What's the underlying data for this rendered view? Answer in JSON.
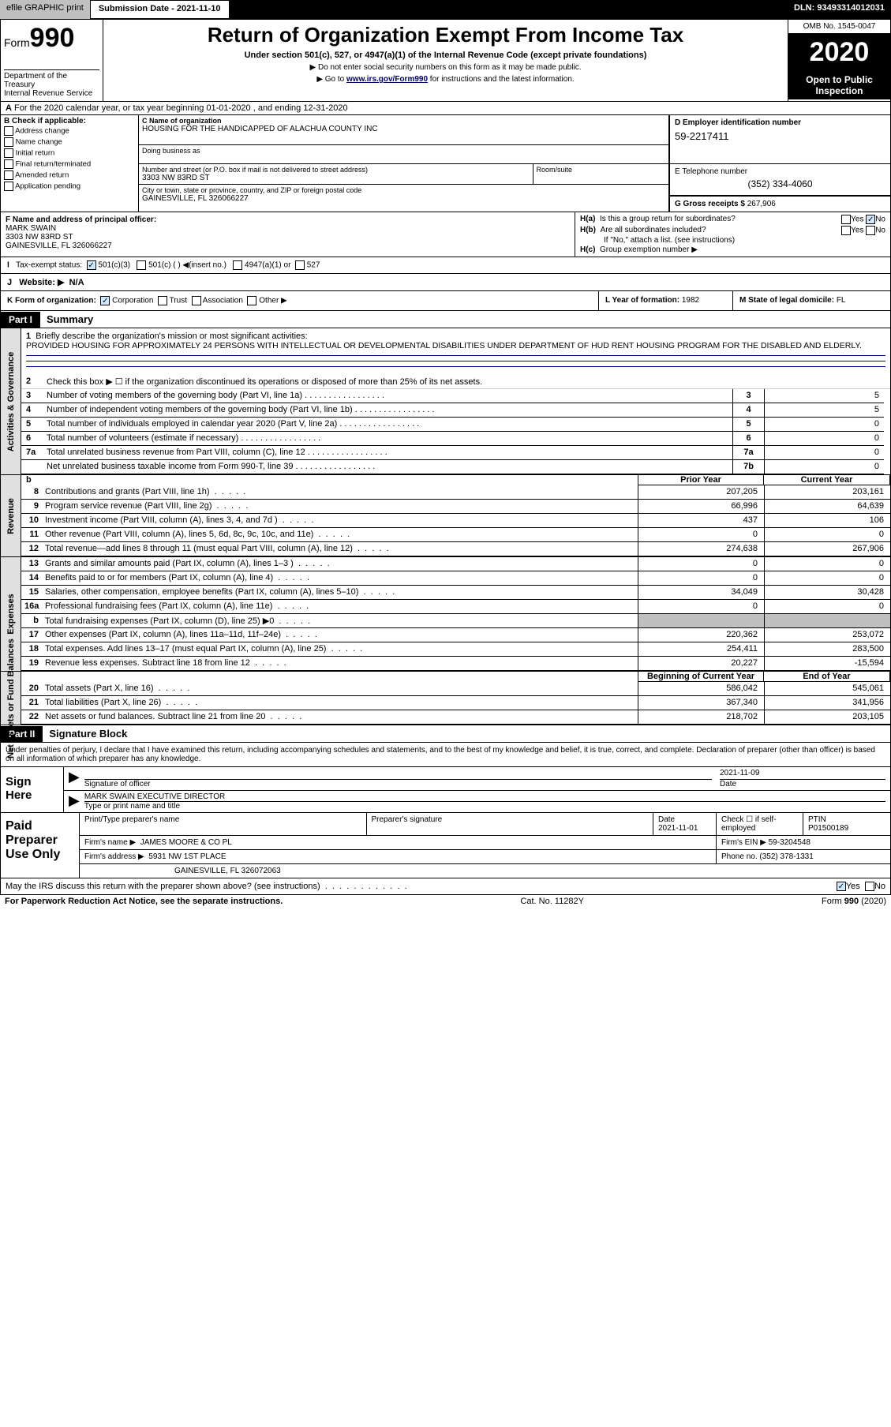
{
  "header": {
    "efile": "efile GRAPHIC print",
    "sub_label": "Submission Date - 2021-11-10",
    "dln": "DLN: 93493314012031"
  },
  "form": {
    "form_label": "Form",
    "form_number": "990",
    "dept1": "Department of the Treasury",
    "dept2": "Internal Revenue Service",
    "title": "Return of Organization Exempt From Income Tax",
    "subtitle": "Under section 501(c), 527, or 4947(a)(1) of the Internal Revenue Code (except private foundations)",
    "note1": "▶ Do not enter social security numbers on this form as it may be made public.",
    "note2_pre": "▶ Go to ",
    "note2_link": "www.irs.gov/Form990",
    "note2_post": " for instructions and the latest information.",
    "omb": "OMB No. 1545-0047",
    "year": "2020",
    "inspect": "Open to Public Inspection"
  },
  "A": {
    "text": "For the 2020 calendar year, or tax year beginning 01-01-2020    , and ending 12-31-2020"
  },
  "B": {
    "label": "B Check if applicable:",
    "opts": [
      "Address change",
      "Name change",
      "Initial return",
      "Final return/terminated",
      "Amended return",
      "Application pending"
    ]
  },
  "C": {
    "name_lbl": "C Name of organization",
    "name": "HOUSING FOR THE HANDICAPPED OF ALACHUA COUNTY INC",
    "dba_lbl": "Doing business as",
    "addr_lbl": "Number and street (or P.O. box if mail is not delivered to street address)",
    "addr": "3303 NW 83RD ST",
    "room_lbl": "Room/suite",
    "city_lbl": "City or town, state or province, country, and ZIP or foreign postal code",
    "city": "GAINESVILLE, FL  326066227"
  },
  "D": {
    "lbl": "D Employer identification number",
    "ein": "59-2217411"
  },
  "E": {
    "lbl": "E Telephone number",
    "phone": "(352) 334-4060"
  },
  "G": {
    "lbl": "G Gross receipts $",
    "val": "267,906"
  },
  "F": {
    "lbl": "F  Name and address of principal officer:",
    "name": "MARK SWAIN",
    "addr1": "3303 NW 83RD ST",
    "addr2": "GAINESVILLE, FL  326066227"
  },
  "H": {
    "a": "Is this a group return for subordinates?",
    "b": "Are all subordinates included?",
    "b2": "If \"No,\" attach a list. (see instructions)",
    "c": "Group exemption number ▶",
    "a_ans": "No",
    "yes": "Yes",
    "no": "No"
  },
  "I": {
    "lbl": "Tax-exempt status:",
    "o1": "501(c)(3)",
    "o2": "501(c) (  ) ◀(insert no.)",
    "o3": "4947(a)(1) or",
    "o4": "527"
  },
  "J": {
    "lbl": "Website: ▶",
    "val": "N/A"
  },
  "K": {
    "lbl": "K Form of organization:",
    "o1": "Corporation",
    "o2": "Trust",
    "o3": "Association",
    "o4": "Other ▶"
  },
  "L": {
    "lbl": "L Year of formation:",
    "val": "1982"
  },
  "M": {
    "lbl": "M State of legal domicile:",
    "val": "FL"
  },
  "part1": {
    "hdr": "Part I",
    "title": "Summary",
    "mission_lbl": "Briefly describe the organization's mission or most significant activities:",
    "mission": "PROVIDED HOUSING FOR APPROXIMATELY 24 PERSONS WITH INTELLECTUAL OR DEVELOPMENTAL DISABILITIES UNDER DEPARTMENT OF HUD RENT HOUSING PROGRAM FOR THE DISABLED AND ELDERLY.",
    "l2": "Check this box ▶ ☐  if the organization discontinued its operations or disposed of more than 25% of its net assets.",
    "lines_ag": [
      {
        "n": "3",
        "t": "Number of voting members of the governing body (Part VI, line 1a)",
        "box": "3",
        "v": "5"
      },
      {
        "n": "4",
        "t": "Number of independent voting members of the governing body (Part VI, line 1b)",
        "box": "4",
        "v": "5"
      },
      {
        "n": "5",
        "t": "Total number of individuals employed in calendar year 2020 (Part V, line 2a)",
        "box": "5",
        "v": "0"
      },
      {
        "n": "6",
        "t": "Total number of volunteers (estimate if necessary)",
        "box": "6",
        "v": "0"
      },
      {
        "n": "7a",
        "t": "Total unrelated business revenue from Part VIII, column (C), line 12",
        "box": "7a",
        "v": "0"
      },
      {
        "n": "",
        "t": "Net unrelated business taxable income from Form 990-T, line 39",
        "box": "7b",
        "v": "0"
      }
    ],
    "prior_hdr": "Prior Year",
    "current_hdr": "Current Year",
    "beg_hdr": "Beginning of Current Year",
    "end_hdr": "End of Year",
    "side_ag": "Activities & Governance",
    "side_rev": "Revenue",
    "side_exp": "Expenses",
    "side_na": "Net Assets or Fund Balances",
    "revenue": [
      {
        "n": "8",
        "t": "Contributions and grants (Part VIII, line 1h)",
        "p": "207,205",
        "c": "203,161"
      },
      {
        "n": "9",
        "t": "Program service revenue (Part VIII, line 2g)",
        "p": "66,996",
        "c": "64,639"
      },
      {
        "n": "10",
        "t": "Investment income (Part VIII, column (A), lines 3, 4, and 7d )",
        "p": "437",
        "c": "106"
      },
      {
        "n": "11",
        "t": "Other revenue (Part VIII, column (A), lines 5, 6d, 8c, 9c, 10c, and 11e)",
        "p": "0",
        "c": "0"
      },
      {
        "n": "12",
        "t": "Total revenue—add lines 8 through 11 (must equal Part VIII, column (A), line 12)",
        "p": "274,638",
        "c": "267,906"
      }
    ],
    "expenses": [
      {
        "n": "13",
        "t": "Grants and similar amounts paid (Part IX, column (A), lines 1–3 )",
        "p": "0",
        "c": "0"
      },
      {
        "n": "14",
        "t": "Benefits paid to or for members (Part IX, column (A), line 4)",
        "p": "0",
        "c": "0"
      },
      {
        "n": "15",
        "t": "Salaries, other compensation, employee benefits (Part IX, column (A), lines 5–10)",
        "p": "34,049",
        "c": "30,428"
      },
      {
        "n": "16a",
        "t": "Professional fundraising fees (Part IX, column (A), line 11e)",
        "p": "0",
        "c": "0"
      },
      {
        "n": "b",
        "t": "Total fundraising expenses (Part IX, column (D), line 25) ▶0",
        "p": "grey",
        "c": "grey"
      },
      {
        "n": "17",
        "t": "Other expenses (Part IX, column (A), lines 11a–11d, 11f–24e)",
        "p": "220,362",
        "c": "253,072"
      },
      {
        "n": "18",
        "t": "Total expenses. Add lines 13–17 (must equal Part IX, column (A), line 25)",
        "p": "254,411",
        "c": "283,500"
      },
      {
        "n": "19",
        "t": "Revenue less expenses. Subtract line 18 from line 12",
        "p": "20,227",
        "c": "-15,594"
      }
    ],
    "netassets": [
      {
        "n": "20",
        "t": "Total assets (Part X, line 16)",
        "p": "586,042",
        "c": "545,061"
      },
      {
        "n": "21",
        "t": "Total liabilities (Part X, line 26)",
        "p": "367,340",
        "c": "341,956"
      },
      {
        "n": "22",
        "t": "Net assets or fund balances. Subtract line 21 from line 20",
        "p": "218,702",
        "c": "203,105"
      }
    ]
  },
  "part2": {
    "hdr": "Part II",
    "title": "Signature Block",
    "intro": "Under penalties of perjury, I declare that I have examined this return, including accompanying schedules and statements, and to the best of my knowledge and belief, it is true, correct, and complete. Declaration of preparer (other than officer) is based on all information of which preparer has any knowledge.",
    "sign_here": "Sign Here",
    "sig_lbl": "Signature of officer",
    "date_lbl": "Date",
    "date": "2021-11-09",
    "name_title": "MARK SWAIN  EXECUTIVE DIRECTOR",
    "name_title_lbl": "Type or print name and title"
  },
  "preparer": {
    "lbl": "Paid Preparer Use Only",
    "h_name": "Print/Type preparer's name",
    "h_sig": "Preparer's signature",
    "h_date": "Date",
    "date": "2021-11-01",
    "h_check": "Check ☐ if self-employed",
    "h_ptin": "PTIN",
    "ptin": "P01500189",
    "firm_lbl": "Firm's name    ▶",
    "firm": "JAMES MOORE & CO PL",
    "ein_lbl": "Firm's EIN ▶",
    "ein": "59-3204548",
    "addr_lbl": "Firm's address ▶",
    "addr1": "5931 NW 1ST PLACE",
    "addr2": "GAINESVILLE, FL  326072063",
    "phone_lbl": "Phone no.",
    "phone": "(352) 378-1331"
  },
  "irs_discuss": {
    "q": "May the IRS discuss this return with the preparer shown above? (see instructions)",
    "yes": "Yes",
    "no": "No"
  },
  "footer": {
    "left": "For Paperwork Reduction Act Notice, see the separate instructions.",
    "mid": "Cat. No. 11282Y",
    "right": "Form 990 (2020)"
  },
  "colors": {
    "header_grey": "#c0c0c0",
    "link_blue": "#0000cd",
    "rule_blue": "#00008b",
    "check_bg": "#d0e8ff"
  }
}
